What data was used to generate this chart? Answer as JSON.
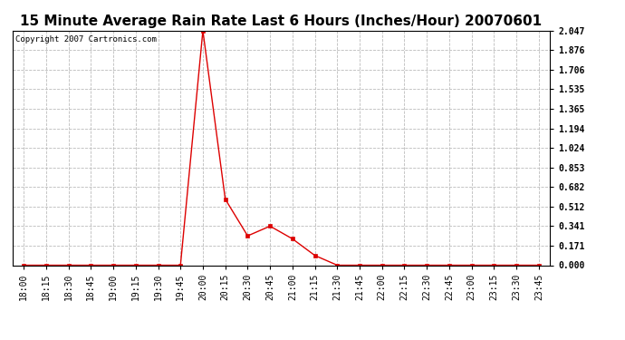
{
  "title": "15 Minute Average Rain Rate Last 6 Hours (Inches/Hour) 20070601",
  "copyright_text": "Copyright 2007 Cartronics.com",
  "x_labels": [
    "18:00",
    "18:15",
    "18:30",
    "18:45",
    "19:00",
    "19:15",
    "19:30",
    "19:45",
    "20:00",
    "20:15",
    "20:30",
    "20:45",
    "21:00",
    "21:15",
    "21:30",
    "21:45",
    "22:00",
    "22:15",
    "22:30",
    "22:45",
    "23:00",
    "23:15",
    "23:30",
    "23:45"
  ],
  "y_values": [
    0.0,
    0.0,
    0.0,
    0.0,
    0.0,
    0.0,
    0.0,
    0.0,
    2.047,
    0.576,
    0.256,
    0.341,
    0.23,
    0.085,
    0.0,
    0.0,
    0.0,
    0.0,
    0.0,
    0.0,
    0.0,
    0.0,
    0.0,
    0.0
  ],
  "y_ticks": [
    0.0,
    0.171,
    0.341,
    0.512,
    0.682,
    0.853,
    1.024,
    1.194,
    1.365,
    1.535,
    1.706,
    1.876,
    2.047
  ],
  "line_color": "#dd0000",
  "marker_color": "#dd0000",
  "background_color": "#ffffff",
  "grid_color": "#bbbbbb",
  "title_fontsize": 11,
  "copyright_fontsize": 6.5,
  "axis_fontsize": 7,
  "ylim": [
    0.0,
    2.047
  ]
}
